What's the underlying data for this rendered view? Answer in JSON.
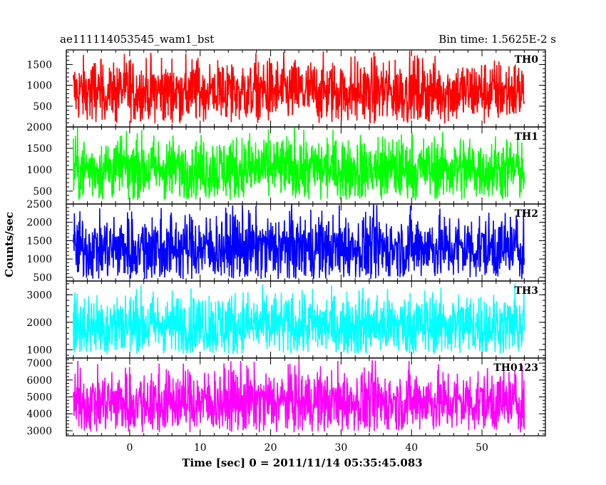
{
  "chart_data": {
    "type": "line",
    "title_left": "ae111114053545_wam1_bst",
    "title_right": "Bin time: 1.5625E-2 s",
    "xlabel": "Time [sec] 0 = 2011/11/14 05:35:45.083",
    "ylabel": "Counts/sec",
    "xlim": [
      -9,
      59
    ],
    "x_ticks": [
      0,
      10,
      20,
      30,
      40,
      50
    ],
    "data_x_range": [
      -8,
      56
    ],
    "panels": [
      {
        "label": "TH0",
        "color": "#ff0000",
        "ylim": [
          0,
          1850
        ],
        "y_ticks": [
          500,
          1000,
          1500
        ],
        "mean": 850,
        "noise_min": 80,
        "noise_max": 1850
      },
      {
        "label": "TH1",
        "color": "#00ff00",
        "ylim": [
          200,
          2000
        ],
        "y_ticks": [
          500,
          1000,
          1500,
          2000
        ],
        "mean": 1020,
        "noise_min": 280,
        "noise_max": 2000
      },
      {
        "label": "TH2",
        "color": "#0000ff",
        "ylim": [
          400,
          2500
        ],
        "y_ticks": [
          500,
          1000,
          1500,
          2000,
          2500
        ],
        "mean": 1300,
        "noise_min": 450,
        "noise_max": 2500
      },
      {
        "label": "TH3",
        "color": "#00ffff",
        "ylim": [
          700,
          3500
        ],
        "y_ticks": [
          1000,
          2000,
          3000
        ],
        "mean": 1900,
        "noise_min": 850,
        "noise_max": 3450
      },
      {
        "label": "TH0123",
        "color": "#ff00ff",
        "ylim": [
          2700,
          7300
        ],
        "y_ticks": [
          3000,
          4000,
          5000,
          6000,
          7000
        ],
        "mean": 4700,
        "noise_min": 2900,
        "noise_max": 7200
      }
    ]
  }
}
